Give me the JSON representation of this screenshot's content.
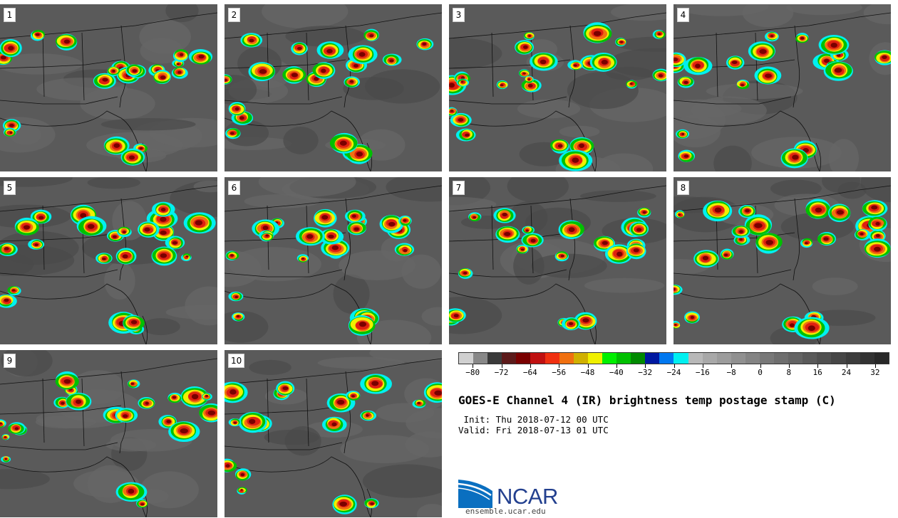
{
  "panels": [
    {
      "label": "1"
    },
    {
      "label": "2"
    },
    {
      "label": "3"
    },
    {
      "label": "4"
    },
    {
      "label": "5"
    },
    {
      "label": "6"
    },
    {
      "label": "7"
    },
    {
      "label": "8"
    },
    {
      "label": "9"
    },
    {
      "label": "10"
    }
  ],
  "colorbar": {
    "colors": [
      "#d0d0d0",
      "#888888",
      "#3a3a3a",
      "#5c1a1a",
      "#7a0000",
      "#c01010",
      "#f03010",
      "#f07010",
      "#d0b000",
      "#f0f000",
      "#00f000",
      "#00c000",
      "#008a00",
      "#0018a0",
      "#0078f0",
      "#00f0f0",
      "#b8b8b8",
      "#a8a8a8",
      "#9c9c9c",
      "#909090",
      "#848484",
      "#787878",
      "#6e6e6e",
      "#646464",
      "#5a5a5a",
      "#505050",
      "#464646",
      "#3c3c3c",
      "#323232",
      "#282828"
    ],
    "tick_labels": [
      "−80",
      "−72",
      "−64",
      "−56",
      "−48",
      "−40",
      "−32",
      "−24",
      "−16",
      "−8",
      "0",
      "8",
      "16",
      "24",
      "32"
    ]
  },
  "title": "GOES-E Channel 4 (IR) brightness temp postage stamp (C)",
  "init": " Init: Thu 2018-07-12 00 UTC",
  "valid": "Valid: Fri 2018-07-13 01 UTC",
  "logo": {
    "text": "NCAR",
    "url": "ensemble.ucar.edu"
  }
}
